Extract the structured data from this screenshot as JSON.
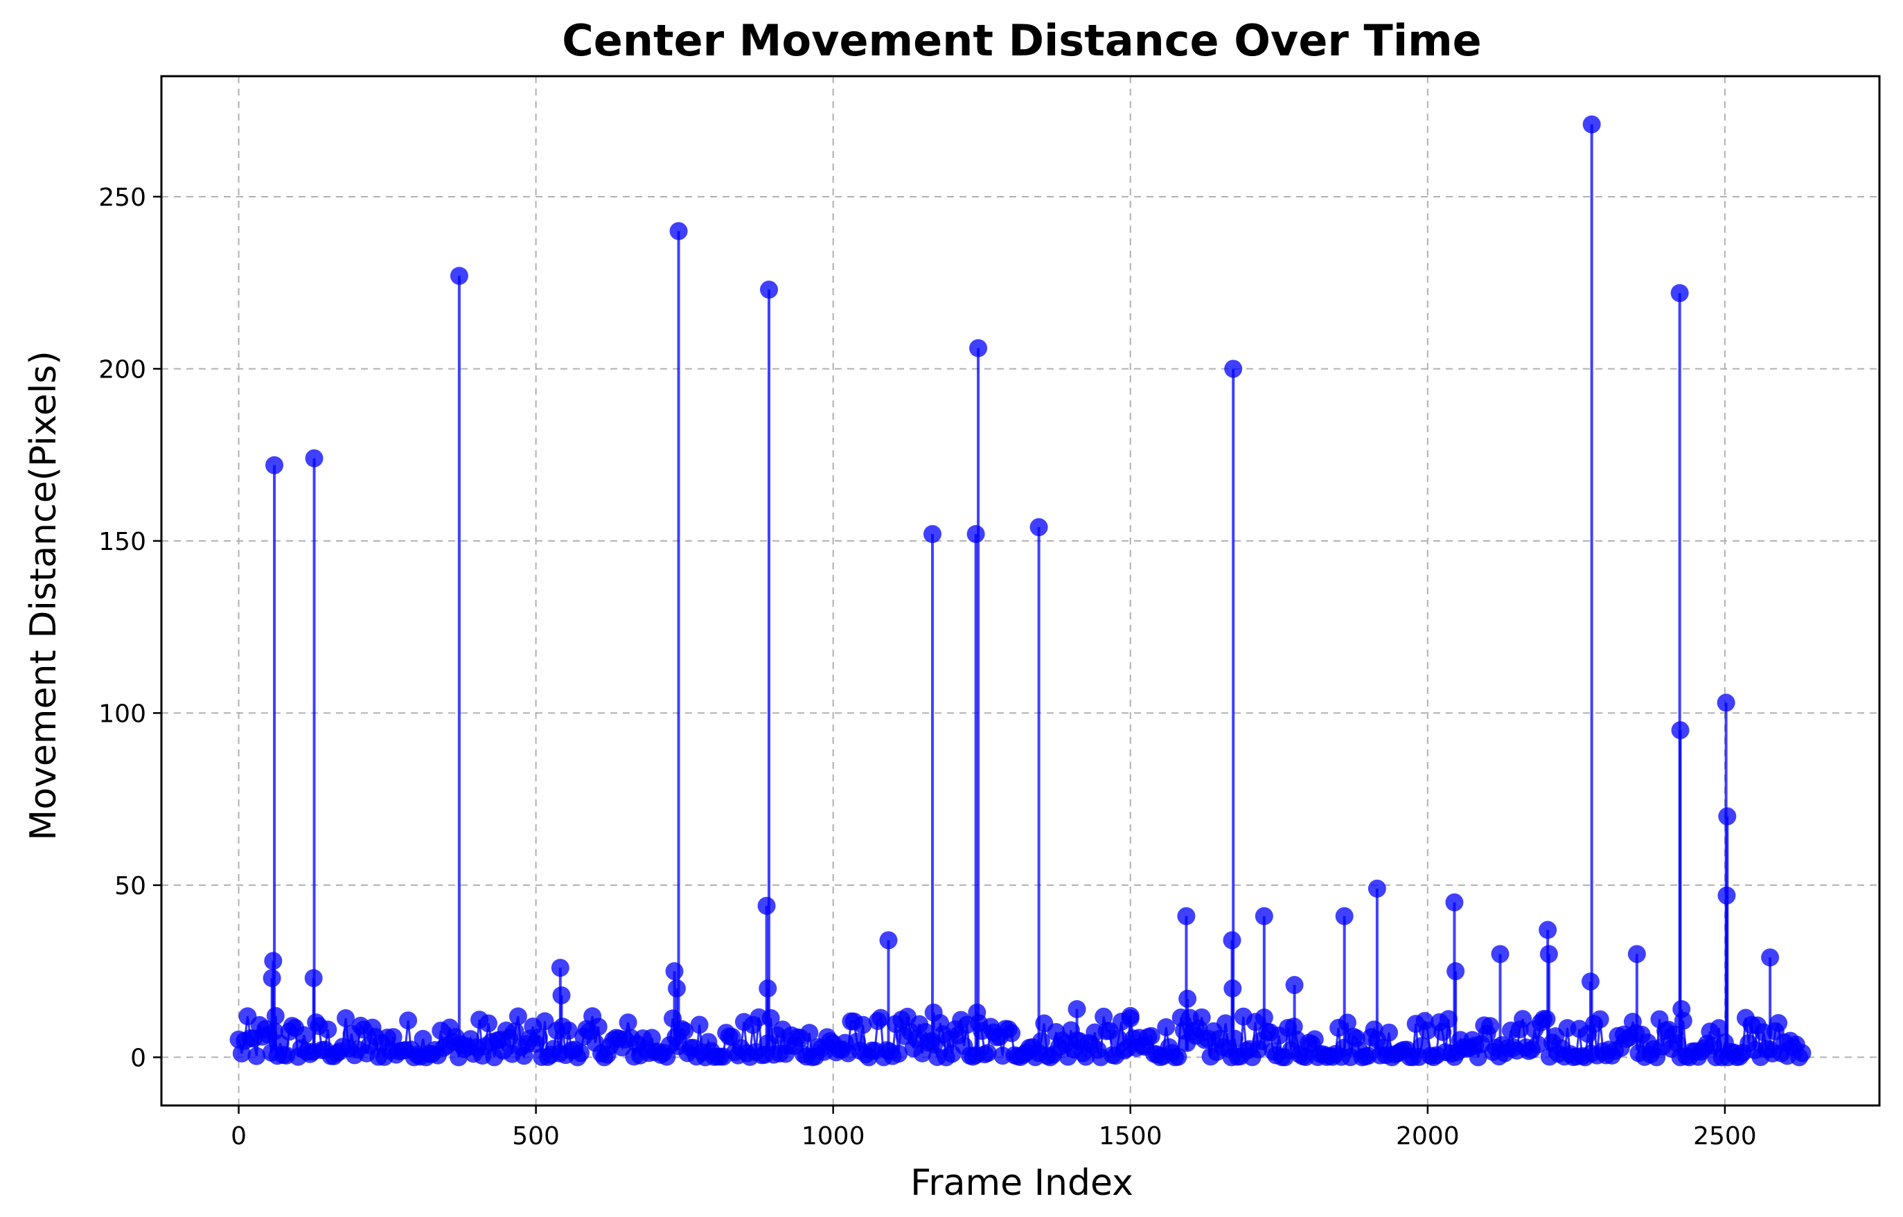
{
  "chart_data": {
    "type": "scatter",
    "title": "Center Movement Distance Over Time",
    "xlabel": "Frame Index",
    "ylabel": "Movement Distance(Pixels)",
    "xlim": [
      -130,
      2760
    ],
    "ylim": [
      -14,
      285
    ],
    "xticks": [
      0,
      500,
      1000,
      1500,
      2000,
      2500
    ],
    "yticks": [
      0,
      50,
      100,
      150,
      200,
      250
    ],
    "grid": true,
    "grid_style": "dashed",
    "color": "#0000ff",
    "marker": "circle",
    "stem_lines": true,
    "baseline_noise": {
      "x_start": 0,
      "x_end": 2630,
      "typical_range": [
        0,
        12
      ]
    },
    "points": [
      {
        "x": 60,
        "y": 172
      },
      {
        "x": 58,
        "y": 28
      },
      {
        "x": 56,
        "y": 23
      },
      {
        "x": 62,
        "y": 12
      },
      {
        "x": 127,
        "y": 174
      },
      {
        "x": 126,
        "y": 23
      },
      {
        "x": 371,
        "y": 227
      },
      {
        "x": 541,
        "y": 26
      },
      {
        "x": 543,
        "y": 18
      },
      {
        "x": 733,
        "y": 25
      },
      {
        "x": 740,
        "y": 240
      },
      {
        "x": 737,
        "y": 20
      },
      {
        "x": 892,
        "y": 223
      },
      {
        "x": 888,
        "y": 44
      },
      {
        "x": 890,
        "y": 20
      },
      {
        "x": 1093,
        "y": 34
      },
      {
        "x": 1167,
        "y": 152
      },
      {
        "x": 1169,
        "y": 13
      },
      {
        "x": 1240,
        "y": 152
      },
      {
        "x": 1244,
        "y": 206
      },
      {
        "x": 1242,
        "y": 13
      },
      {
        "x": 1346,
        "y": 154
      },
      {
        "x": 1410,
        "y": 14
      },
      {
        "x": 1500,
        "y": 12
      },
      {
        "x": 1594,
        "y": 41
      },
      {
        "x": 1596,
        "y": 17
      },
      {
        "x": 1673,
        "y": 200
      },
      {
        "x": 1671,
        "y": 34
      },
      {
        "x": 1672,
        "y": 20
      },
      {
        "x": 1725,
        "y": 41
      },
      {
        "x": 1776,
        "y": 21
      },
      {
        "x": 1860,
        "y": 41
      },
      {
        "x": 1915,
        "y": 49
      },
      {
        "x": 2045,
        "y": 45
      },
      {
        "x": 2047,
        "y": 25
      },
      {
        "x": 2122,
        "y": 30
      },
      {
        "x": 2202,
        "y": 37
      },
      {
        "x": 2204,
        "y": 30
      },
      {
        "x": 2276,
        "y": 271
      },
      {
        "x": 2274,
        "y": 22
      },
      {
        "x": 2352,
        "y": 30
      },
      {
        "x": 2424,
        "y": 222
      },
      {
        "x": 2425,
        "y": 95
      },
      {
        "x": 2427,
        "y": 14
      },
      {
        "x": 2502,
        "y": 103
      },
      {
        "x": 2504,
        "y": 70
      },
      {
        "x": 2503,
        "y": 47
      },
      {
        "x": 2576,
        "y": 29
      }
    ]
  }
}
